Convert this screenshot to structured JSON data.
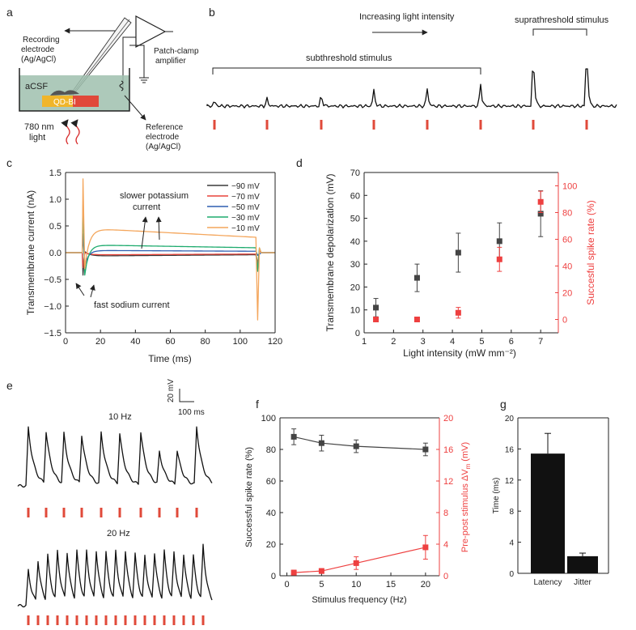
{
  "panels": {
    "a": {
      "label": "a",
      "recording_electrode": [
        "Recording",
        "electrode",
        "(Ag/AgCl)"
      ],
      "amplifier": [
        "Patch-clamp",
        "amplifier"
      ],
      "acsf": "aCSF",
      "chip": "QD-BI",
      "reference_electrode": [
        "Reference",
        "electrode",
        "(Ag/AgCl)"
      ],
      "light": [
        "780 nm",
        "light"
      ]
    },
    "b": {
      "label": "b",
      "increasing": "Increasing light intensity",
      "subthreshold": "subthreshold stimulus",
      "suprathreshold": "suprathreshold stimulus"
    },
    "c": {
      "label": "c"
    },
    "d": {
      "label": "d"
    },
    "e": {
      "label": "e",
      "scale_v": "20 mV",
      "scale_t": "100 ms",
      "top_label": "10 Hz",
      "bottom_label": "20 Hz"
    },
    "f": {
      "label": "f"
    },
    "g": {
      "label": "g"
    }
  },
  "chart_data": [
    {
      "id": "c",
      "type": "line",
      "xlabel": "Time (ms)",
      "ylabel": "Transmembrane current (nA)",
      "xlim": [
        0,
        120
      ],
      "ylim": [
        -1.5,
        1.5
      ],
      "xticks": [
        0,
        20,
        40,
        60,
        80,
        100,
        120
      ],
      "yticks": [
        -1.5,
        -1.0,
        -0.5,
        0.0,
        0.5,
        1.0,
        1.5
      ],
      "legend": "top-right",
      "series": [
        {
          "name": "-90 mV",
          "color": "#3a3a3a"
        },
        {
          "name": "-70 mV",
          "color": "#e8433a"
        },
        {
          "name": "-50 mV",
          "color": "#2f5fb0"
        },
        {
          "name": "-30 mV",
          "color": "#1eab6e"
        },
        {
          "name": "-10 mV",
          "color": "#f4a65c"
        }
      ],
      "annotations": [
        {
          "lines": [
            "slower potassium",
            "current"
          ]
        },
        {
          "lines": [
            "fast sodium current"
          ]
        }
      ]
    },
    {
      "id": "d",
      "type": "scatter",
      "xlabel": "Light intensity (mW mm⁻²)",
      "ylabel": "Transmembrane depolarization (mV)",
      "y2label": "Succesful spike rate (%)",
      "xlim": [
        1,
        7.6
      ],
      "ylim": [
        0,
        70
      ],
      "y2lim": [
        -10,
        110
      ],
      "xticks": [
        1,
        2,
        3,
        4,
        5,
        6,
        7
      ],
      "yticks": [
        0,
        10,
        20,
        30,
        40,
        50,
        60,
        70
      ],
      "y2ticks": [
        0,
        20,
        40,
        60,
        80,
        100
      ],
      "x": [
        1.4,
        2.8,
        4.2,
        5.6,
        7.0
      ],
      "series": [
        {
          "name": "Transmembrane depolarization",
          "axis": "left",
          "color": "#444444",
          "values": [
            11,
            24,
            35,
            40,
            52
          ],
          "errors": [
            4,
            6,
            8.5,
            8,
            10
          ]
        },
        {
          "name": "Succesful spike rate",
          "axis": "right",
          "color": "#ee4040",
          "values": [
            0,
            0,
            5,
            45,
            88
          ],
          "errors": [
            0,
            0,
            4,
            9,
            8
          ]
        }
      ]
    },
    {
      "id": "f",
      "type": "line",
      "xlabel": "Stimulus frequency (Hz)",
      "ylabel": "Successful spike rate (%)",
      "y2label": "Pre-post stimulus ΔV",
      "y2label_sub": "m",
      "y2label_unit": " (mV)",
      "xlim": [
        -1,
        22
      ],
      "ylim": [
        0,
        100
      ],
      "y2lim": [
        0,
        20
      ],
      "xticks": [
        0,
        5,
        10,
        15,
        20
      ],
      "yticks": [
        0,
        20,
        40,
        60,
        80,
        100
      ],
      "y2ticks": [
        0,
        4,
        8,
        12,
        16,
        20
      ],
      "x": [
        1,
        5,
        10,
        20
      ],
      "series": [
        {
          "name": "Successful spike rate",
          "axis": "left",
          "color": "#444444",
          "values": [
            88,
            84,
            82,
            80
          ],
          "errors": [
            5,
            5,
            4,
            4
          ]
        },
        {
          "name": "Pre-post stimulus ΔVm",
          "axis": "right",
          "color": "#ee4040",
          "values": [
            0.4,
            0.6,
            1.6,
            3.6
          ],
          "errors": [
            0.3,
            0.3,
            0.8,
            1.5
          ]
        }
      ]
    },
    {
      "id": "g",
      "type": "bar",
      "ylabel": "Time (ms)",
      "categories": [
        "Latency",
        "Jitter"
      ],
      "values": [
        15.4,
        2.2
      ],
      "errors": [
        2.6,
        0.4
      ],
      "ylim": [
        0,
        20
      ],
      "yticks": [
        0,
        4,
        8,
        12,
        16,
        20
      ],
      "color": "#111111"
    }
  ]
}
